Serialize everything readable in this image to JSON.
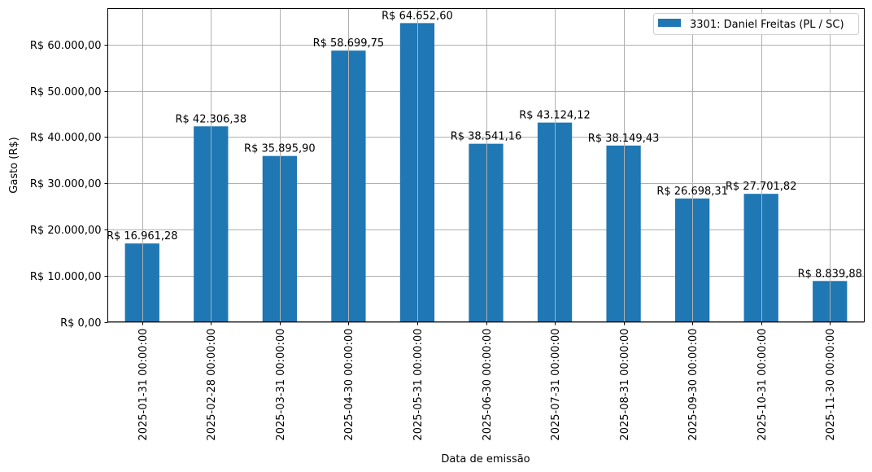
{
  "chart_data": {
    "type": "bar",
    "title": "",
    "xlabel": "Data de emissão",
    "ylabel": "Gasto (R$)",
    "ylim": [
      0,
      67800
    ],
    "grid": true,
    "legend_position": "upper right",
    "categories": [
      "2025-01-31 00:00:00",
      "2025-02-28 00:00:00",
      "2025-03-31 00:00:00",
      "2025-04-30 00:00:00",
      "2025-05-31 00:00:00",
      "2025-06-30 00:00:00",
      "2025-07-31 00:00:00",
      "2025-08-31 00:00:00",
      "2025-09-30 00:00:00",
      "2025-10-31 00:00:00",
      "2025-11-30 00:00:00"
    ],
    "series": [
      {
        "name": "3301: Daniel Freitas (PL / SC)",
        "color": "#1f77b4",
        "values": [
          16961.28,
          42306.38,
          35895.9,
          58699.75,
          64652.6,
          38541.16,
          43124.12,
          38149.43,
          26698.31,
          27701.82,
          8839.88
        ],
        "labels": [
          "R$ 16.961,28",
          "R$ 42.306,38",
          "R$ 35.895,90",
          "R$ 58.699,75",
          "R$ 64.652,60",
          "R$ 38.541,16",
          "R$ 43.124,12",
          "R$ 38.149,43",
          "R$ 26.698,31",
          "R$ 27.701,82",
          "R$ 8.839,88"
        ]
      }
    ],
    "yticks": [
      {
        "value": 0,
        "label": "R$ 0,00"
      },
      {
        "value": 10000,
        "label": "R$ 10.000,00"
      },
      {
        "value": 20000,
        "label": "R$ 20.000,00"
      },
      {
        "value": 30000,
        "label": "R$ 30.000,00"
      },
      {
        "value": 40000,
        "label": "R$ 40.000,00"
      },
      {
        "value": 50000,
        "label": "R$ 50.000,00"
      },
      {
        "value": 60000,
        "label": "R$ 60.000,00"
      }
    ]
  },
  "colors": {
    "bar": "#1f77b4",
    "grid": "#b0b0b0",
    "axis": "#000000"
  }
}
